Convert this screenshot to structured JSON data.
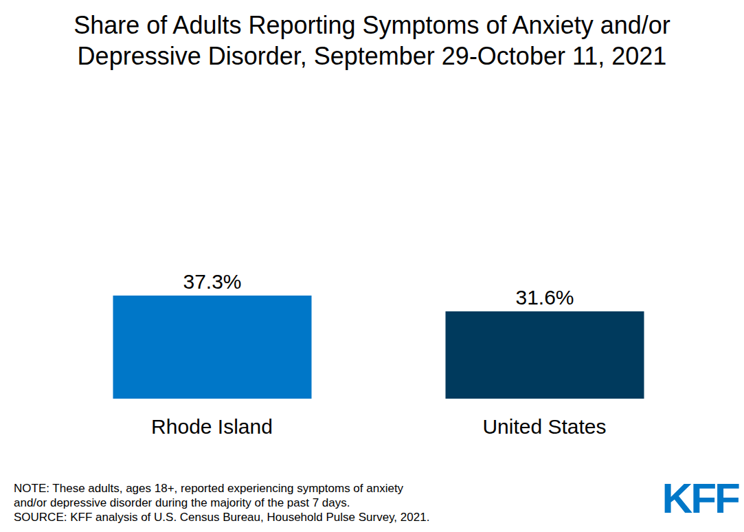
{
  "chart_data": {
    "type": "bar",
    "title": "Share of Adults Reporting Symptoms of Anxiety and/or Depressive Disorder, September 29-October 11, 2021",
    "categories": [
      "Rhode Island",
      "United States"
    ],
    "values": [
      37.3,
      31.6
    ],
    "value_labels": [
      "37.3%",
      "31.6%"
    ],
    "colors": [
      "#0077c8",
      "#003a5d"
    ],
    "ylim": [
      0,
      100
    ],
    "data_labels": true,
    "tick_labels": "x",
    "grid": false,
    "note": [
      "NOTE: These adults, ages 18+, reported experiencing symptoms of anxiety",
      "and/or depressive disorder during the majority of the past 7 days."
    ],
    "source": "SOURCE: KFF analysis of U.S. Census Bureau, Household Pulse Survey, 2021.",
    "logo": "KFF"
  }
}
